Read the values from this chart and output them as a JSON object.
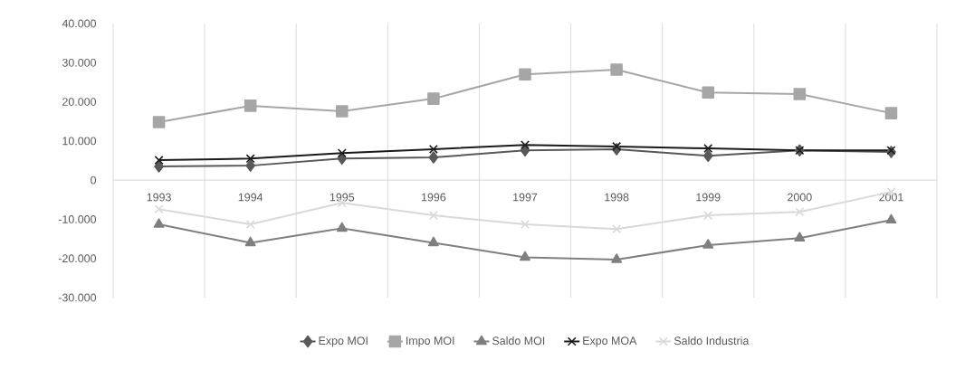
{
  "chart_data": {
    "type": "line",
    "categories": [
      "1993",
      "1994",
      "1995",
      "1996",
      "1997",
      "1998",
      "1999",
      "2000",
      "2001"
    ],
    "series": [
      {
        "name": "Expo MOI",
        "color": "#595959",
        "marker": "diamond",
        "values": [
          3500,
          3700,
          5500,
          5800,
          7600,
          7900,
          6200,
          7600,
          7200
        ]
      },
      {
        "name": "Impo MOI",
        "color": "#a6a6a6",
        "marker": "square",
        "values": [
          14800,
          19000,
          17600,
          20800,
          27000,
          28200,
          22400,
          22000,
          17100
        ]
      },
      {
        "name": "Saldo MOI",
        "color": "#7f7f7f",
        "marker": "triangle",
        "values": [
          -11300,
          -16000,
          -12300,
          -16000,
          -19700,
          -20300,
          -16600,
          -14800,
          -10200
        ]
      },
      {
        "name": "Expo MOA",
        "color": "#1a1a1a",
        "marker": "cross",
        "values": [
          5100,
          5500,
          6900,
          7900,
          9000,
          8600,
          8100,
          7600,
          7600
        ]
      },
      {
        "name": "Saldo Industria",
        "color": "#d9d9d9",
        "marker": "cross",
        "values": [
          -7400,
          -11300,
          -5800,
          -9000,
          -11300,
          -12500,
          -9000,
          -8100,
          -3000
        ]
      }
    ],
    "ylim": [
      -30000,
      40000
    ],
    "yticks": [
      {
        "value": -30000,
        "label": "-30.000"
      },
      {
        "value": -20000,
        "label": "-20.000"
      },
      {
        "value": -10000,
        "label": "-10.000"
      },
      0,
      {
        "value": 10000,
        "label": "10.000"
      },
      {
        "value": 20000,
        "label": "20.000"
      },
      {
        "value": 30000,
        "label": "30.000"
      },
      {
        "value": 40000,
        "label": "40.000"
      }
    ],
    "grid": "x",
    "legend": "bottom",
    "line_style": "solid"
  }
}
